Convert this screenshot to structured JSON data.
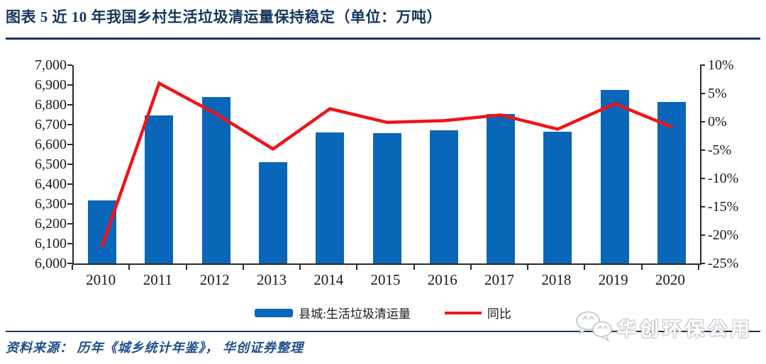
{
  "figure": {
    "title": "图表 5  近 10 年我国乡村生活垃圾清运量保持稳定（单位：万吨）",
    "source_note": "资料来源： 历年《城乡统计年鉴》， 华创证券整理",
    "watermark": "华创环保公用",
    "watermark_icon": "wechat-icon"
  },
  "colors": {
    "bar_blue": "#0a66b8",
    "line_red": "#ee1418",
    "title_navy": "#16365c",
    "rule_navy": "#17375e",
    "source_blue": "#1f4e8a",
    "axis_gray": "#2b2b2b"
  },
  "chart_data": {
    "type": "bar",
    "title": "近 10 年我国乡村生活垃圾清运量保持稳定",
    "unit": "万吨",
    "categories": [
      "2010",
      "2011",
      "2012",
      "2013",
      "2014",
      "2015",
      "2016",
      "2017",
      "2018",
      "2019",
      "2020"
    ],
    "series": [
      {
        "name": "县城:生活垃圾清运量",
        "type": "bar",
        "axis": "left",
        "values": [
          6318,
          6746,
          6840,
          6511,
          6661,
          6656,
          6670,
          6752,
          6665,
          6876,
          6813
        ]
      },
      {
        "name": "同比",
        "type": "line",
        "axis": "right",
        "unit": "%",
        "values": [
          -21.9,
          6.8,
          1.4,
          -4.8,
          2.3,
          -0.1,
          0.2,
          1.2,
          -1.3,
          3.2,
          -0.9
        ]
      }
    ],
    "left_axis": {
      "min": 6000,
      "max": 7000,
      "step": 100,
      "tick_labels": [
        "7,000",
        "6,900",
        "6,800",
        "6,700",
        "6,600",
        "6,500",
        "6,400",
        "6,300",
        "6,200",
        "6,100",
        "6,000"
      ]
    },
    "right_axis": {
      "min": -25,
      "max": 10,
      "step": 5,
      "tick_labels": [
        "10%",
        "5%",
        "0%",
        "-5%",
        "-10%",
        "-15%",
        "-20%",
        "-25%"
      ]
    },
    "legend_position": "bottom",
    "grid": false
  }
}
